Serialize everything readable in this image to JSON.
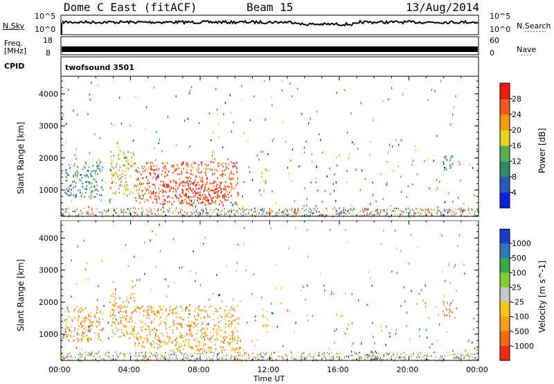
{
  "header": {
    "title": "Dome C East (fitACF)",
    "beam": "Beam 15",
    "date": "13/Aug/2014"
  },
  "strips": {
    "nsky_label": "N.Sky",
    "nsky_top": "10^5",
    "nsky_bottom": "10^0",
    "nsearch_label": "N.Search",
    "nsearch_top": "10^5",
    "nsearch_bottom": "10^0",
    "freq_label": "Freq.",
    "freq_unit": "[MHz]",
    "freq_top": "18",
    "freq_bottom": "8",
    "nave_label": "Nave",
    "nave_top": "60",
    "nave_bottom": "0",
    "cpid_label": "CPID",
    "cpid_value": "twofsound 3501"
  },
  "chart_data": [
    {
      "type": "heatmap",
      "panel": "power",
      "ylabel": "Slant Range [km]",
      "xlabel": "",
      "yticks": [
        1000,
        2000,
        3000,
        4000
      ],
      "ylim": [
        180,
        4550
      ],
      "xlim_hours": [
        0,
        24
      ],
      "colorbar": {
        "label": "Power [dB]",
        "ticks": [
          "4",
          "8",
          "12",
          "16",
          "20",
          "24",
          "28"
        ],
        "colors": [
          "#0a1fe0",
          "#2a5ab8",
          "#2f8a6a",
          "#55b055",
          "#e7d21f",
          "#f59a0c",
          "#f2591c",
          "#ee1c10"
        ]
      },
      "blobs": [
        {
          "t0": 0.2,
          "t1": 2.4,
          "r0": 800,
          "r1": 1900,
          "level": 2
        },
        {
          "t0": 2.8,
          "t1": 4.2,
          "r0": 900,
          "r1": 2300,
          "level": 4
        },
        {
          "t0": 4.2,
          "t1": 10.2,
          "r0": 600,
          "r1": 1900,
          "level": 6
        },
        {
          "t0": 5.8,
          "t1": 9.6,
          "r0": 550,
          "r1": 1300,
          "level": 7
        },
        {
          "t0": 10.0,
          "t1": 10.5,
          "r0": 300,
          "r1": 600,
          "level": 5
        },
        {
          "t0": 11.5,
          "t1": 11.9,
          "r0": 1200,
          "r1": 1800,
          "level": 4
        },
        {
          "t0": 17.3,
          "t1": 18.2,
          "r0": 220,
          "r1": 400,
          "level": 6
        },
        {
          "t0": 21.9,
          "t1": 22.5,
          "r0": 1600,
          "r1": 2100,
          "level": 2
        }
      ]
    },
    {
      "type": "heatmap",
      "panel": "velocity",
      "ylabel": "Slant Range [km]",
      "xlabel": "Time UT",
      "xticks": [
        "00:00",
        "04:00",
        "08:00",
        "12:00",
        "16:00",
        "20:00",
        "00:00"
      ],
      "yticks": [
        1000,
        2000,
        3000,
        4000
      ],
      "ylim": [
        180,
        4550
      ],
      "xlim_hours": [
        0,
        24
      ],
      "colorbar": {
        "label": "Velocity [m s^-1]",
        "ticks": [
          "1000",
          "500",
          "100",
          "25",
          "-25",
          "-100",
          "-500",
          "-1000"
        ],
        "colors": [
          "#1c3cc8",
          "#2c78b8",
          "#3aa850",
          "#7ed03a",
          "#c8c8c8",
          "#f7c41a",
          "#f5a018",
          "#f2681a",
          "#ee2a14"
        ]
      },
      "blobs": [
        {
          "t0": 0.2,
          "t1": 2.4,
          "r0": 800,
          "r1": 1900,
          "level": 6
        },
        {
          "t0": 2.8,
          "t1": 4.2,
          "r0": 900,
          "r1": 2300,
          "level": 6
        },
        {
          "t0": 4.2,
          "t1": 10.2,
          "r0": 500,
          "r1": 1900,
          "level": 6
        },
        {
          "t0": 10.0,
          "t1": 10.5,
          "r0": 300,
          "r1": 600,
          "level": 5
        },
        {
          "t0": 11.5,
          "t1": 11.9,
          "r0": 1200,
          "r1": 1800,
          "level": 5
        },
        {
          "t0": 17.3,
          "t1": 18.2,
          "r0": 220,
          "r1": 400,
          "level": 2
        },
        {
          "t0": 21.9,
          "t1": 22.5,
          "r0": 1600,
          "r1": 2100,
          "level": 7
        }
      ]
    }
  ]
}
